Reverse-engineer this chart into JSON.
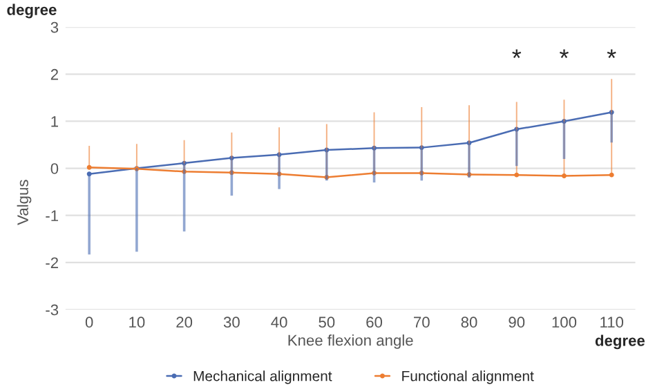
{
  "chart_data": {
    "type": "line",
    "xlabel": "Knee flexion angle",
    "ylabel": "Valgus",
    "categories": [
      "0",
      "10",
      "20",
      "30",
      "40",
      "50",
      "60",
      "70",
      "80",
      "90",
      "100",
      "110"
    ],
    "series": [
      {
        "name": "Mechanical alignment",
        "color": "#4a6cb3",
        "values": [
          -0.12,
          0,
          0.11,
          0.22,
          0.29,
          0.39,
          0.43,
          0.44,
          0.54,
          0.83,
          1.0,
          1.19
        ],
        "errors": [
          [
            -1.83,
            -0.12
          ],
          [
            -1.77,
            0
          ],
          [
            -1.34,
            0.11
          ],
          [
            -0.58,
            0.22
          ],
          [
            -0.44,
            0.29
          ],
          [
            -0.26,
            0.39
          ],
          [
            -0.3,
            0.43
          ],
          [
            -0.26,
            0.44
          ],
          [
            -0.2,
            0.54
          ],
          [
            0.05,
            0.83
          ],
          [
            0.2,
            1.0
          ],
          [
            0.55,
            1.19
          ]
        ]
      },
      {
        "name": "Functional alignment",
        "color": "#ed7d31",
        "values": [
          0.02,
          -0.01,
          -0.07,
          -0.09,
          -0.12,
          -0.19,
          -0.1,
          -0.1,
          -0.13,
          -0.14,
          -0.16,
          -0.14
        ],
        "errors": [
          [
            0.02,
            0.48
          ],
          [
            -0.01,
            0.52
          ],
          [
            -0.07,
            0.6
          ],
          [
            -0.09,
            0.76
          ],
          [
            -0.12,
            0.87
          ],
          [
            -0.19,
            0.94
          ],
          [
            -0.1,
            1.19
          ],
          [
            -0.1,
            1.3
          ],
          [
            -0.13,
            1.34
          ],
          [
            -0.14,
            1.41
          ],
          [
            -0.16,
            1.46
          ],
          [
            -0.14,
            1.9
          ]
        ]
      }
    ],
    "ylim": [
      -3,
      3
    ],
    "yticks": [
      -3,
      -2,
      -1,
      0,
      1,
      2,
      3
    ],
    "grid": "y",
    "legend": "bottom",
    "marker": "circle",
    "line_style": "solid",
    "annotations": [
      "degree",
      "degree",
      "*",
      "*",
      "*"
    ]
  }
}
